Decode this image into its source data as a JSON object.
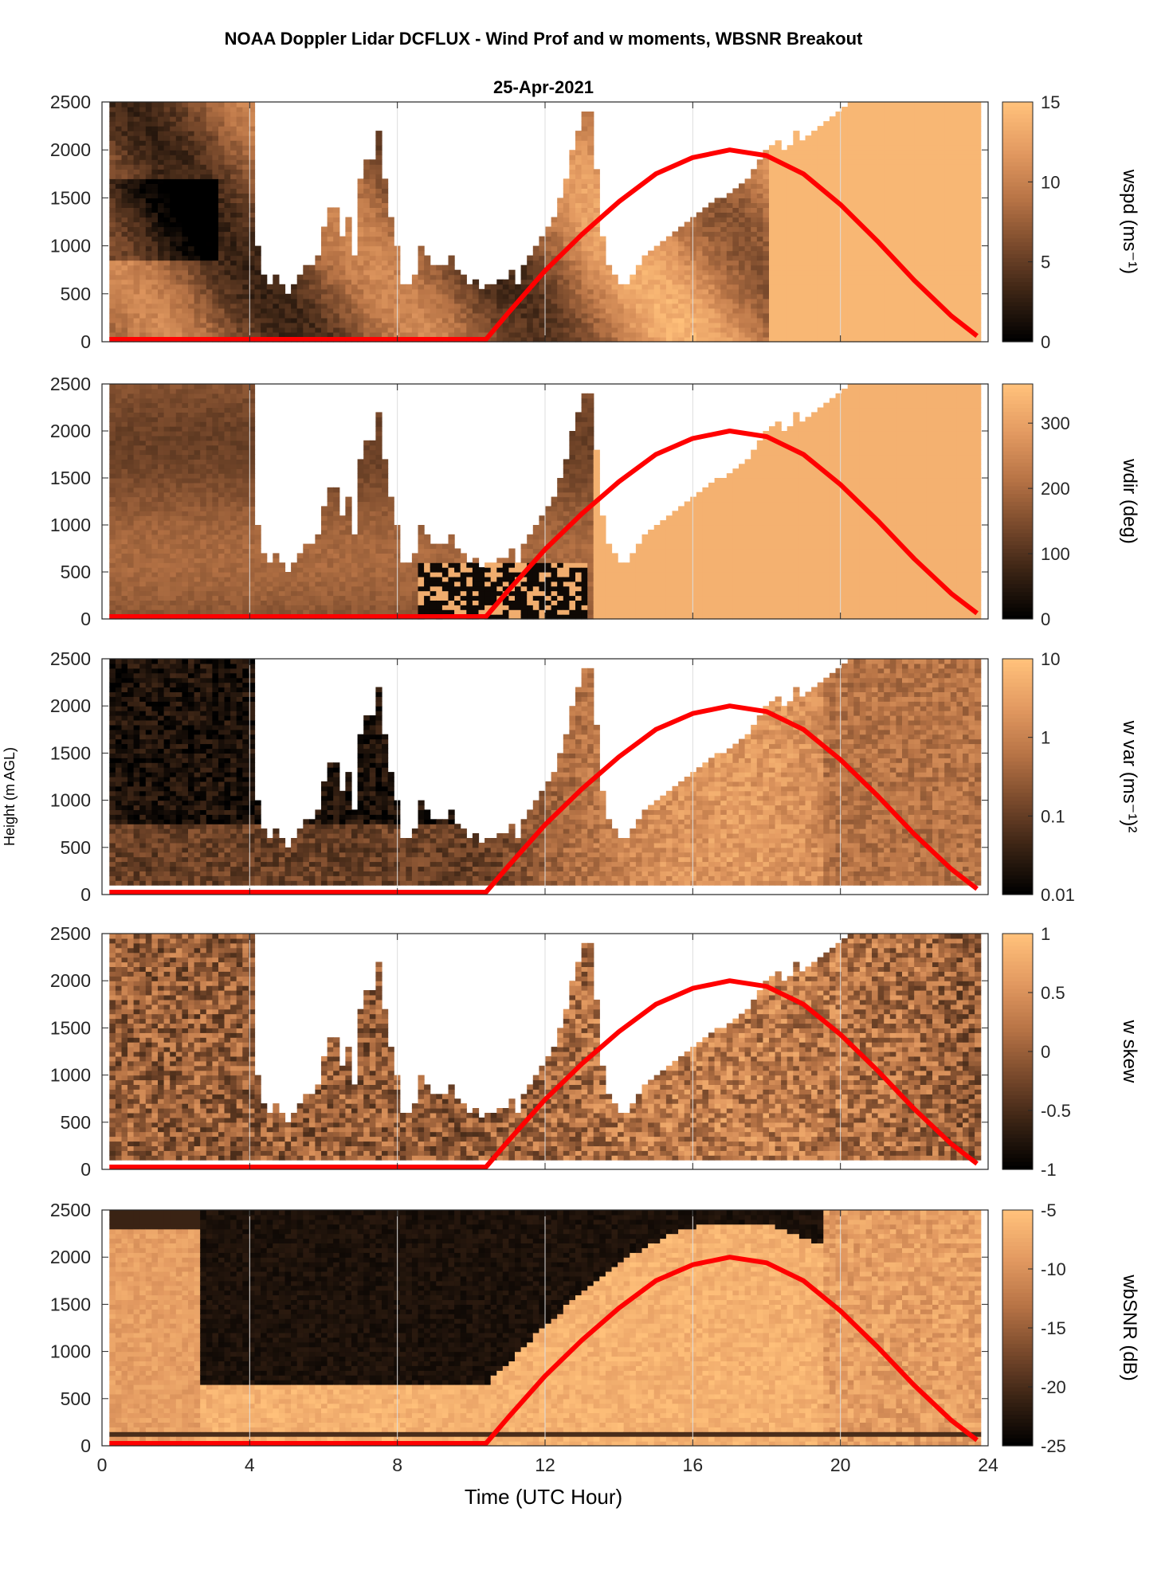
{
  "figure": {
    "title": "NOAA Doppler Lidar DCFLUX - Wind Prof and w moments, WBSNR Breakout",
    "date": "25-Apr-2021"
  },
  "colors": {
    "colormap": [
      "#000000",
      "#3a2314",
      "#7a4a2c",
      "#b87446",
      "#e39a61",
      "#ffc07a"
    ],
    "sun_curve": "#ff0000",
    "grid": "#dddddd",
    "axis": "#262626"
  },
  "chart_data": [
    {
      "type": "heatmap",
      "name": "wspd",
      "xlabel": "",
      "ylabel": "",
      "cblabel": "wspd (ms⁻¹)",
      "xlim": [
        0,
        24
      ],
      "ylim": [
        0,
        2500
      ],
      "xticks": [
        0,
        4,
        8,
        12,
        16,
        20,
        24
      ],
      "yticks": [
        0,
        500,
        1000,
        1500,
        2000,
        2500
      ],
      "cbticks": [
        "0",
        "5",
        "10",
        "15"
      ],
      "clim": [
        0,
        15
      ],
      "grid": true,
      "top_of_data_m": [
        2500,
        2500,
        2500,
        2500,
        2500,
        2500,
        2500,
        2500,
        2500,
        2500,
        2500,
        2500,
        2500,
        2500,
        2500,
        2500,
        2500,
        2500,
        2500,
        2500,
        2500,
        2500,
        2500,
        2500,
        1000,
        700,
        600,
        700,
        600,
        500,
        600,
        700,
        800,
        800,
        900,
        1200,
        1400,
        1400,
        1100,
        1300,
        900,
        1700,
        1900,
        1900,
        2200,
        1700,
        1300,
        1000,
        600,
        600,
        700,
        1000,
        900,
        800,
        800,
        800,
        900,
        750,
        700,
        600,
        650,
        550,
        600,
        600,
        650,
        650,
        750,
        600,
        800,
        900,
        1000,
        1100,
        1200,
        1300,
        1500,
        1700,
        2000,
        2200,
        2400,
        2400,
        1800,
        1100,
        800,
        700,
        600,
        600,
        700,
        800,
        900,
        950,
        1000,
        1050,
        1100,
        1150,
        1200,
        1250,
        1300,
        1350,
        1400,
        1450,
        1500,
        1500,
        1550,
        1600,
        1650,
        1700,
        1800,
        1900,
        2000,
        2050,
        2100,
        2000,
        2050,
        2200,
        2100,
        2150,
        2200,
        2250,
        2300,
        2350,
        2400,
        2450,
        2500,
        2500,
        2500,
        2500,
        2500,
        2500,
        2500,
        2500,
        2500,
        2500,
        2500,
        2500,
        2500,
        2500,
        2500,
        2500,
        2500,
        2500,
        2500,
        2500,
        2500,
        2500
      ]
    },
    {
      "type": "heatmap",
      "name": "wdir",
      "xlabel": "",
      "ylabel": "",
      "cblabel": "wdir (deg)",
      "xlim": [
        0,
        24
      ],
      "ylim": [
        0,
        2500
      ],
      "xticks": [
        0,
        4,
        8,
        12,
        16,
        20,
        24
      ],
      "yticks": [
        0,
        500,
        1000,
        1500,
        2000,
        2500
      ],
      "cbticks": [
        "0",
        "100",
        "200",
        "300"
      ],
      "clim": [
        0,
        360
      ],
      "grid": true,
      "top_of_data_m": [
        2500,
        2500,
        2500,
        2500,
        2500,
        2500,
        2500,
        2500,
        2500,
        2500,
        2500,
        2500,
        2500,
        2500,
        2500,
        2500,
        2500,
        2500,
        2500,
        2500,
        2500,
        2500,
        2500,
        2500,
        1000,
        700,
        600,
        700,
        600,
        500,
        600,
        700,
        800,
        800,
        900,
        1200,
        1400,
        1400,
        1100,
        1300,
        900,
        1700,
        1900,
        1900,
        2200,
        1700,
        1300,
        1000,
        600,
        600,
        700,
        1000,
        900,
        800,
        800,
        800,
        900,
        750,
        700,
        600,
        650,
        550,
        600,
        600,
        650,
        650,
        750,
        600,
        800,
        900,
        1000,
        1100,
        1200,
        1300,
        1500,
        1700,
        2000,
        2200,
        2400,
        2400,
        1800,
        1100,
        800,
        700,
        600,
        600,
        700,
        800,
        900,
        950,
        1000,
        1050,
        1100,
        1150,
        1200,
        1250,
        1300,
        1350,
        1400,
        1450,
        1500,
        1500,
        1550,
        1600,
        1650,
        1700,
        1800,
        1900,
        2000,
        2050,
        2100,
        2000,
        2050,
        2200,
        2100,
        2150,
        2200,
        2250,
        2300,
        2350,
        2400,
        2450,
        2500,
        2500,
        2500,
        2500,
        2500,
        2500,
        2500,
        2500,
        2500,
        2500,
        2500,
        2500,
        2500,
        2500,
        2500,
        2500,
        2500,
        2500,
        2500,
        2500,
        2500,
        2500
      ]
    },
    {
      "type": "heatmap",
      "name": "w var",
      "xlabel": "",
      "ylabel": "Height (m AGL)",
      "cblabel": "w var (ms⁻¹)²",
      "xlim": [
        0,
        24
      ],
      "ylim": [
        0,
        2500
      ],
      "xticks": [
        0,
        4,
        8,
        12,
        16,
        20,
        24
      ],
      "yticks": [
        0,
        500,
        1000,
        1500,
        2000,
        2500
      ],
      "cbticks": [
        "0.01",
        "0.1",
        "1",
        "10"
      ],
      "cbscale": "log",
      "clim": [
        0.01,
        10
      ],
      "grid": true,
      "top_of_data_m": [
        2500,
        2500,
        2500,
        2500,
        2500,
        2500,
        2500,
        2500,
        2500,
        2500,
        2500,
        2500,
        2500,
        2500,
        2500,
        2500,
        2500,
        2500,
        2500,
        2500,
        2500,
        2500,
        2500,
        2500,
        1000,
        700,
        600,
        700,
        600,
        500,
        600,
        700,
        800,
        800,
        900,
        1200,
        1400,
        1400,
        1100,
        1300,
        900,
        1700,
        1900,
        1900,
        2200,
        1700,
        1300,
        1000,
        600,
        600,
        700,
        1000,
        900,
        800,
        800,
        800,
        900,
        750,
        700,
        600,
        650,
        550,
        600,
        600,
        650,
        650,
        750,
        600,
        800,
        900,
        1000,
        1100,
        1200,
        1300,
        1500,
        1700,
        2000,
        2200,
        2400,
        2400,
        1800,
        1100,
        800,
        700,
        600,
        600,
        700,
        800,
        900,
        950,
        1000,
        1050,
        1100,
        1150,
        1200,
        1250,
        1300,
        1350,
        1400,
        1450,
        1500,
        1500,
        1550,
        1600,
        1650,
        1700,
        1800,
        1900,
        2000,
        2050,
        2100,
        2000,
        2050,
        2200,
        2100,
        2150,
        2200,
        2250,
        2300,
        2350,
        2400,
        2450,
        2500,
        2500,
        2500,
        2500,
        2500,
        2500,
        2500,
        2500,
        2500,
        2500,
        2500,
        2500,
        2500,
        2500,
        2500,
        2500,
        2500,
        2500,
        2500,
        2500,
        2500,
        2500
      ]
    },
    {
      "type": "heatmap",
      "name": "w skew",
      "xlabel": "",
      "ylabel": "",
      "cblabel": "w skew",
      "xlim": [
        0,
        24
      ],
      "ylim": [
        0,
        2500
      ],
      "xticks": [
        0,
        4,
        8,
        12,
        16,
        20,
        24
      ],
      "yticks": [
        0,
        500,
        1000,
        1500,
        2000,
        2500
      ],
      "cbticks": [
        "-1",
        "-0.5",
        "0",
        "0.5",
        "1"
      ],
      "clim": [
        -1,
        1
      ],
      "grid": true,
      "top_of_data_m": [
        2500,
        2500,
        2500,
        2500,
        2500,
        2500,
        2500,
        2500,
        2500,
        2500,
        2500,
        2500,
        2500,
        2500,
        2500,
        2500,
        2500,
        2500,
        2500,
        2500,
        2500,
        2500,
        2500,
        2500,
        1000,
        700,
        600,
        700,
        600,
        500,
        600,
        700,
        800,
        800,
        900,
        1200,
        1400,
        1400,
        1100,
        1300,
        900,
        1700,
        1900,
        1900,
        2200,
        1700,
        1300,
        1000,
        600,
        600,
        700,
        1000,
        900,
        800,
        800,
        800,
        900,
        750,
        700,
        600,
        650,
        550,
        600,
        600,
        650,
        650,
        750,
        600,
        800,
        900,
        1000,
        1100,
        1200,
        1300,
        1500,
        1700,
        2000,
        2200,
        2400,
        2400,
        1800,
        1100,
        800,
        700,
        600,
        600,
        700,
        800,
        900,
        950,
        1000,
        1050,
        1100,
        1150,
        1200,
        1250,
        1300,
        1350,
        1400,
        1450,
        1500,
        1500,
        1550,
        1600,
        1650,
        1700,
        1800,
        1900,
        2000,
        2050,
        2100,
        2000,
        2050,
        2200,
        2100,
        2150,
        2200,
        2250,
        2300,
        2350,
        2400,
        2450,
        2500,
        2500,
        2500,
        2500,
        2500,
        2500,
        2500,
        2500,
        2500,
        2500,
        2500,
        2500,
        2500,
        2500,
        2500,
        2500,
        2500,
        2500,
        2500,
        2500,
        2500,
        2500
      ]
    },
    {
      "type": "heatmap",
      "name": "wbSNR",
      "xlabel": "Time (UTC Hour)",
      "ylabel": "",
      "cblabel": "wbSNR (dB)",
      "xlim": [
        0,
        24
      ],
      "ylim": [
        0,
        2500
      ],
      "xticks": [
        0,
        4,
        8,
        12,
        16,
        20,
        24
      ],
      "yticks": [
        0,
        500,
        1000,
        1500,
        2000,
        2500
      ],
      "cbticks": [
        "-25",
        "-20",
        "-15",
        "-10",
        "-5"
      ],
      "clim": [
        -25,
        -5
      ],
      "grid": true,
      "top_of_data_m": [
        2500,
        2500,
        2500,
        2500,
        2500,
        2500,
        2500,
        2500,
        2500,
        2500,
        2500,
        2500,
        2500,
        2500,
        2500,
        2500,
        2500,
        2500,
        2500,
        2500,
        2500,
        2500,
        2500,
        2500,
        2500,
        2500,
        2500,
        2500,
        2500,
        2500,
        2500,
        2500,
        2500,
        2500,
        2500,
        2500,
        2500,
        2500,
        2500,
        2500,
        2500,
        2500,
        2500,
        2500,
        2500,
        2500,
        2500,
        2500,
        2500,
        2500,
        2500,
        2500,
        2500,
        2500,
        2500,
        2500,
        2500,
        2500,
        2500,
        2500,
        2500,
        2500,
        2500,
        2500,
        2500,
        2500,
        2500,
        2500,
        2500,
        2500,
        2500,
        2500,
        2500,
        2500,
        2500,
        2500,
        2500,
        2500,
        2500,
        2500,
        2500,
        2500,
        2500,
        2500,
        2500,
        2500,
        2500,
        2500,
        2500,
        2500,
        2500,
        2500,
        2500,
        2500,
        2500,
        2500,
        2500,
        2500,
        2500,
        2500,
        2500,
        2500,
        2500,
        2500,
        2500,
        2500,
        2500,
        2500,
        2500,
        2500,
        2500,
        2500,
        2500,
        2500,
        2500,
        2500,
        2500,
        2500,
        2500,
        2500,
        2500,
        2500,
        2500,
        2500,
        2500,
        2500,
        2500,
        2500,
        2500,
        2500,
        2500,
        2500,
        2500,
        2500,
        2500,
        2500,
        2500,
        2500,
        2500,
        2500,
        2500,
        2500,
        2500,
        2500
      ]
    }
  ],
  "sun_curve": {
    "type": "line",
    "x": [
      0.2,
      10.4,
      11,
      12,
      13,
      14,
      15,
      16,
      17,
      18,
      19,
      20,
      21,
      22,
      23,
      23.7
    ],
    "y": [
      25,
      25,
      300,
      740,
      1120,
      1460,
      1750,
      1920,
      2000,
      1940,
      1750,
      1430,
      1050,
      640,
      270,
      60
    ]
  }
}
